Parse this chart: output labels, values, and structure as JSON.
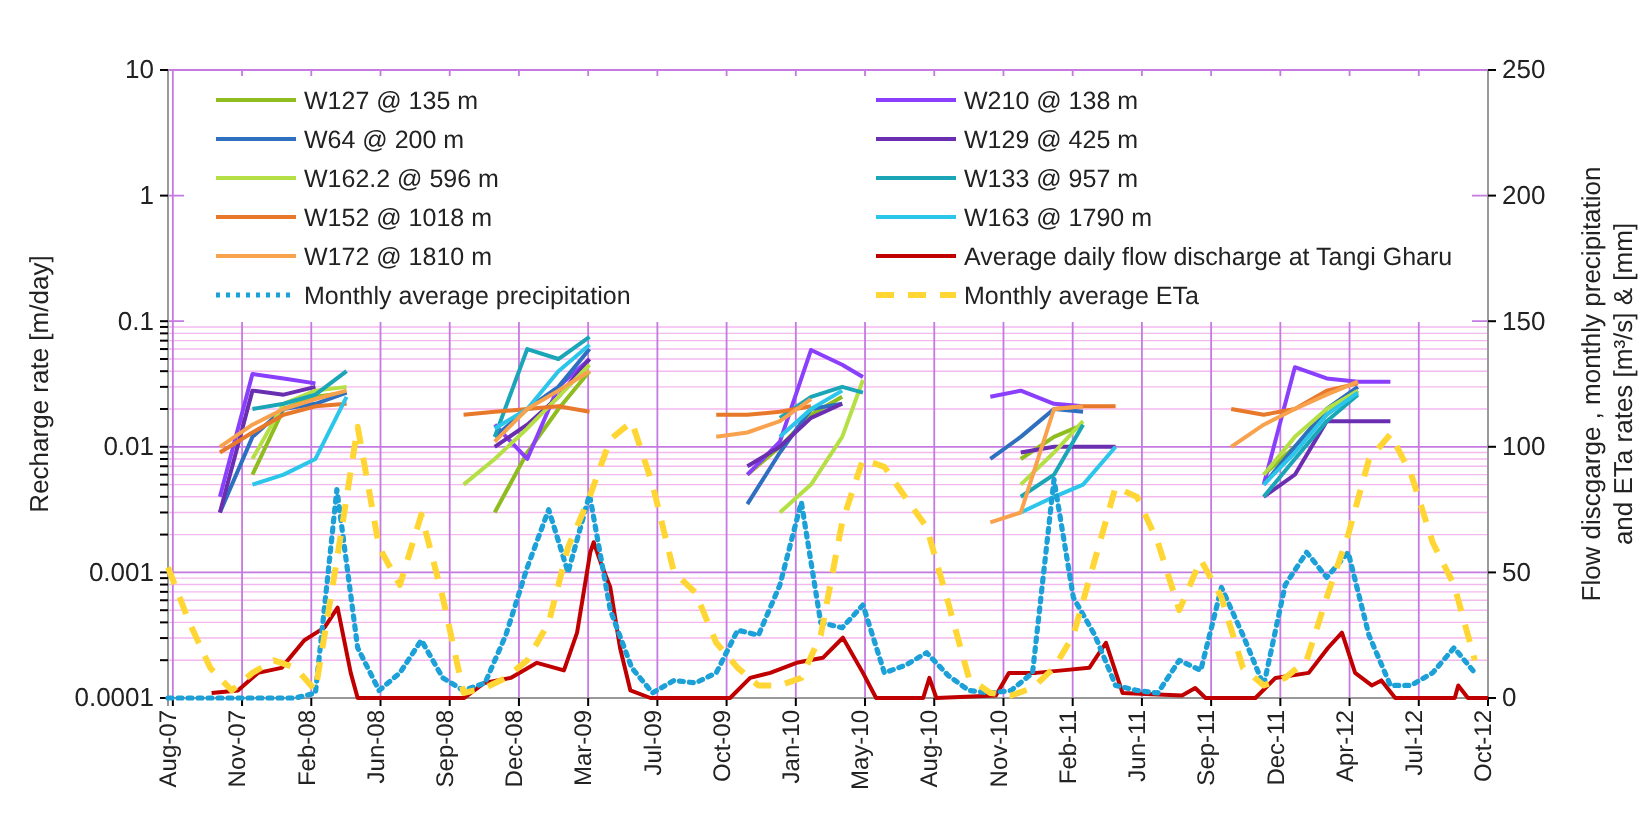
{
  "chart_data": {
    "type": "line",
    "log": "y",
    "grid": true,
    "legend": "top",
    "ylabel": "Recharge rate [m/day]",
    "y2label": "Flow discgarge , monthly precipitation and ETa rates [m³/s] & [mm]",
    "xlim": [
      "2007-08-01",
      "2012-10-20"
    ],
    "xticks": [
      {
        "value": "2007-08-08",
        "label": "Aug-07"
      },
      {
        "value": "2007-11-16",
        "label": "Nov-07"
      },
      {
        "value": "2008-02-24",
        "label": "Feb-08"
      },
      {
        "value": "2008-06-03",
        "label": "Jun-08"
      },
      {
        "value": "2008-09-11",
        "label": "Sep-08"
      },
      {
        "value": "2008-12-20",
        "label": "Dec-08"
      },
      {
        "value": "2009-03-30",
        "label": "Mar-09"
      },
      {
        "value": "2009-07-08",
        "label": "Jul-09"
      },
      {
        "value": "2009-10-16",
        "label": "Oct-09"
      },
      {
        "value": "2010-01-24",
        "label": "Jan-10"
      },
      {
        "value": "2010-05-04",
        "label": "May-10"
      },
      {
        "value": "2010-08-12",
        "label": "Aug-10"
      },
      {
        "value": "2010-11-20",
        "label": "Nov-10"
      },
      {
        "value": "2011-02-28",
        "label": "Feb-11"
      },
      {
        "value": "2011-06-08",
        "label": "Jun-11"
      },
      {
        "value": "2011-09-16",
        "label": "Sep-11"
      },
      {
        "value": "2011-12-25",
        "label": "Dec-11"
      },
      {
        "value": "2012-04-03",
        "label": "Apr-12"
      },
      {
        "value": "2012-07-12",
        "label": "Jul-12"
      },
      {
        "value": "2012-10-20",
        "label": "Oct-12"
      }
    ],
    "ylim": [
      0.0001,
      10
    ],
    "yticks": [
      0.0001,
      {
        "value": 0.0002,
        "label": null
      },
      {
        "value": 0.0003,
        "label": null
      },
      {
        "value": 0.0004,
        "label": null
      },
      {
        "value": 0.0005,
        "label": null
      },
      {
        "value": 0.0006,
        "label": null
      },
      {
        "value": 0.0007,
        "label": null
      },
      {
        "value": 0.0008,
        "label": null
      },
      {
        "value": 0.0009,
        "label": null
      },
      0.001,
      {
        "value": 0.002,
        "label": null
      },
      {
        "value": 0.003,
        "label": null
      },
      {
        "value": 0.004,
        "label": null
      },
      {
        "value": 0.005,
        "label": null
      },
      {
        "value": 0.006,
        "label": null
      },
      {
        "value": 0.007,
        "label": null
      },
      {
        "value": 0.008,
        "label": null
      },
      {
        "value": 0.009,
        "label": null
      },
      0.01,
      {
        "value": 0.02,
        "label": null
      },
      {
        "value": 0.03,
        "label": null
      },
      {
        "value": 0.04,
        "label": null
      },
      {
        "value": 0.05,
        "label": null
      },
      {
        "value": 0.06,
        "label": null
      },
      {
        "value": 0.07,
        "label": null
      },
      {
        "value": 0.08,
        "label": null
      },
      {
        "value": 0.09,
        "label": null
      },
      0.1,
      1,
      10
    ],
    "y2lim": [
      0,
      250
    ],
    "y2ticks": [
      0,
      50,
      100,
      150,
      200,
      250
    ],
    "x": [
      "2007-10-15",
      "2007-12-01",
      "2008-01-15",
      "2008-03-01",
      "2008-04-15",
      "2008-07-01",
      "2008-10-01",
      "2008-11-15",
      "2009-01-01",
      "2009-02-15",
      "2009-04-01",
      "2009-07-01",
      "2009-10-01",
      "2009-11-15",
      "2010-01-01",
      "2010-02-15",
      "2010-04-01",
      "2010-05-01",
      "2010-08-01",
      "2010-11-01",
      "2010-12-15",
      "2011-02-01",
      "2011-03-15",
      "2011-05-01",
      "2011-08-01",
      "2011-10-15",
      "2011-12-01",
      "2012-01-15",
      "2012-03-01",
      "2012-04-15",
      "2012-06-01"
    ],
    "series": [
      {
        "name": "W127 @ 135 m",
        "color": "#8fbc1e",
        "values": [
          null,
          0.006,
          0.02,
          0.025,
          0.027,
          null,
          null,
          0.003,
          0.009,
          0.02,
          0.04,
          null,
          null,
          0.006,
          0.01,
          0.018,
          0.025,
          null,
          null,
          null,
          0.008,
          0.012,
          0.015,
          null,
          null,
          null,
          0.006,
          0.01,
          0.018,
          0.028,
          null
        ]
      },
      {
        "name": "W210 @ 138 m",
        "color": "#8a3ffc",
        "values": [
          0.004,
          0.038,
          0.035,
          0.032,
          null,
          null,
          null,
          0.015,
          0.008,
          0.03,
          0.05,
          null,
          null,
          0.006,
          0.011,
          0.059,
          0.045,
          0.036,
          null,
          0.025,
          0.028,
          0.022,
          0.021,
          null,
          null,
          null,
          0.005,
          0.043,
          0.035,
          0.033,
          0.033
        ]
      },
      {
        "name": "W64 @ 200 m",
        "color": "#2e6fc0",
        "values": [
          0.003,
          0.012,
          0.02,
          0.022,
          0.027,
          null,
          null,
          0.012,
          0.02,
          0.03,
          0.06,
          null,
          null,
          0.0035,
          0.009,
          0.02,
          0.022,
          null,
          null,
          0.008,
          0.012,
          0.02,
          0.019,
          null,
          null,
          null,
          0.005,
          0.01,
          0.02,
          0.03,
          null
        ]
      },
      {
        "name": "W129 @ 425 m",
        "color": "#6a2fb0",
        "values": [
          0.003,
          0.028,
          0.026,
          0.03,
          null,
          null,
          null,
          0.01,
          0.015,
          0.025,
          0.05,
          null,
          null,
          0.007,
          0.01,
          0.017,
          0.022,
          null,
          null,
          null,
          0.009,
          0.01,
          0.01,
          0.01,
          null,
          null,
          0.004,
          0.006,
          0.016,
          0.016,
          0.016
        ]
      },
      {
        "name": "W162.2 @ 596 m",
        "color": "#b5e045",
        "values": [
          null,
          0.008,
          0.022,
          0.028,
          0.03,
          null,
          0.005,
          0.008,
          0.014,
          0.025,
          0.045,
          null,
          null,
          null,
          0.003,
          0.005,
          0.012,
          0.034,
          null,
          null,
          0.005,
          0.009,
          0.016,
          null,
          null,
          null,
          0.006,
          0.012,
          0.02,
          0.028,
          null
        ]
      },
      {
        "name": "W133 @ 957 m",
        "color": "#1aa6b7",
        "values": [
          null,
          0.02,
          0.022,
          0.026,
          0.04,
          null,
          null,
          0.012,
          0.06,
          0.05,
          0.075,
          null,
          null,
          null,
          0.017,
          0.025,
          0.03,
          0.027,
          null,
          null,
          0.004,
          0.006,
          0.015,
          null,
          null,
          null,
          0.004,
          0.008,
          0.016,
          0.026,
          null
        ]
      },
      {
        "name": "W152 @ 1018 m",
        "color": "#e8782a",
        "values": [
          0.009,
          0.013,
          0.018,
          0.021,
          0.022,
          null,
          0.018,
          0.019,
          0.02,
          0.021,
          0.019,
          null,
          0.018,
          0.018,
          0.019,
          0.021,
          null,
          null,
          null,
          null,
          null,
          0.02,
          0.021,
          0.021,
          null,
          0.02,
          0.018,
          0.02,
          0.028,
          0.032,
          null
        ]
      },
      {
        "name": "W163 @ 1790 m",
        "color": "#2cc6ea",
        "values": [
          null,
          0.005,
          0.006,
          0.008,
          0.025,
          null,
          null,
          0.014,
          0.02,
          0.04,
          0.065,
          null,
          null,
          null,
          0.012,
          0.02,
          0.028,
          null,
          null,
          null,
          0.003,
          0.004,
          0.005,
          0.01,
          null,
          null,
          0.005,
          0.009,
          0.018,
          0.027,
          null
        ]
      },
      {
        "name": "W172 @ 1810 m",
        "color": "#f9a24e",
        "values": [
          0.01,
          0.015,
          0.02,
          0.024,
          0.028,
          null,
          null,
          0.011,
          0.02,
          0.028,
          0.04,
          null,
          0.012,
          0.013,
          0.016,
          0.024,
          null,
          null,
          null,
          0.0025,
          0.003,
          0.02,
          0.021,
          null,
          null,
          0.01,
          0.015,
          0.02,
          0.026,
          0.033,
          null
        ]
      },
      {
        "name": "Average daily flow discharge at Tangi Gharu",
        "color": "#c00000",
        "axis": "y2",
        "line_style": "solid",
        "x": [
          "2007-10-03",
          "2007-11-10",
          "2007-12-09",
          "2008-01-12",
          "2008-02-14",
          "2008-03-14",
          "2008-04-02",
          "2008-04-21",
          "2008-05-01",
          "2008-07-01",
          "2008-10-02",
          "2008-10-31",
          "2008-12-08",
          "2009-01-15",
          "2009-02-23",
          "2009-03-14",
          "2009-04-02",
          "2009-04-07",
          "2009-04-17",
          "2009-05-01",
          "2009-05-15",
          "2009-05-30",
          "2009-06-28",
          "2009-10-21",
          "2009-11-19",
          "2009-12-18",
          "2010-01-25",
          "2010-03-04",
          "2010-04-02",
          "2010-05-01",
          "2010-05-20",
          "2010-07-27",
          "2010-08-05",
          "2010-08-15",
          "2010-11-09",
          "2010-11-28",
          "2011-01-06",
          "2011-02-13",
          "2011-03-24",
          "2011-04-17",
          "2011-05-11",
          "2011-08-05",
          "2011-08-24",
          "2011-09-08",
          "2011-11-19",
          "2011-12-18",
          "2012-02-04",
          "2012-03-03",
          "2012-03-23",
          "2012-04-11",
          "2012-05-05",
          "2012-05-19",
          "2012-06-08",
          "2012-09-02",
          "2012-09-07",
          "2012-09-21",
          "2012-10-20"
        ],
        "values": [
          2,
          3,
          10,
          12,
          23,
          28,
          36,
          10,
          0,
          0,
          0,
          6,
          8,
          14,
          11,
          26,
          58,
          62,
          54,
          44,
          20,
          3,
          0,
          0,
          8,
          10,
          14,
          16,
          24,
          10,
          0,
          0,
          8,
          0,
          1,
          10,
          10,
          11,
          12,
          22,
          2,
          1,
          4,
          0,
          0,
          8,
          10,
          20,
          26,
          10,
          5,
          7,
          0,
          0,
          5,
          0,
          0
        ]
      },
      {
        "name": "Monthly average precipitation",
        "color": "#1ca0d8",
        "axis": "y2",
        "line_style": "dotted",
        "x": [
          "2007-08",
          "2007-09",
          "2007-10",
          "2007-11",
          "2007-12",
          "2008-01",
          "2008-02",
          "2008-03",
          "2008-04",
          "2008-05",
          "2008-06",
          "2008-07",
          "2008-08",
          "2008-09",
          "2008-10",
          "2008-11",
          "2008-12",
          "2009-01",
          "2009-02",
          "2009-03",
          "2009-04",
          "2009-05",
          "2009-06",
          "2009-07",
          "2009-08",
          "2009-09",
          "2009-10",
          "2009-11",
          "2009-12",
          "2010-01",
          "2010-02",
          "2010-03",
          "2010-04",
          "2010-05",
          "2010-06",
          "2010-07",
          "2010-08",
          "2010-09",
          "2010-10",
          "2010-11",
          "2010-12",
          "2011-01",
          "2011-02",
          "2011-03",
          "2011-04",
          "2011-05",
          "2011-06",
          "2011-07",
          "2011-08",
          "2011-09",
          "2011-10",
          "2011-11",
          "2011-12",
          "2012-01",
          "2012-02",
          "2012-03",
          "2012-04",
          "2012-05",
          "2012-06",
          "2012-07",
          "2012-08",
          "2012-09",
          "2012-10"
        ],
        "values": [
          0,
          0,
          0,
          0,
          0,
          0,
          0,
          2,
          83,
          20,
          3,
          10,
          23,
          8,
          3,
          6,
          25,
          52,
          75,
          50,
          81,
          35,
          12,
          2,
          7,
          6,
          10,
          27,
          25,
          45,
          78,
          30,
          28,
          37,
          10,
          13,
          18,
          9,
          3,
          2,
          3,
          10,
          87,
          40,
          25,
          5,
          3,
          2,
          15,
          11,
          44,
          25,
          5,
          45,
          58,
          48,
          58,
          25,
          5,
          5,
          10,
          20,
          10
        ]
      },
      {
        "name": "Monthly average ETa",
        "color": "#ffd633",
        "axis": "y2",
        "line_style": "dashed",
        "x": [
          "2007-08",
          "2007-09",
          "2007-10",
          "2007-11",
          "2007-12",
          "2008-01",
          "2008-02",
          "2008-03",
          "2008-04",
          "2008-05",
          "2008-06",
          "2008-07",
          "2008-08",
          "2008-09",
          "2008-10",
          "2008-11",
          "2008-12",
          "2009-01",
          "2009-02",
          "2009-03",
          "2009-04",
          "2009-05",
          "2009-06",
          "2009-07",
          "2009-08",
          "2009-09",
          "2009-10",
          "2009-11",
          "2009-12",
          "2010-01",
          "2010-02",
          "2010-03",
          "2010-04",
          "2010-05",
          "2010-06",
          "2010-07",
          "2010-08",
          "2010-09",
          "2010-10",
          "2010-11",
          "2010-12",
          "2011-01",
          "2011-02",
          "2011-03",
          "2011-04",
          "2011-05",
          "2011-06",
          "2011-07",
          "2011-08",
          "2011-09",
          "2011-10",
          "2011-11",
          "2011-12",
          "2012-01",
          "2012-02",
          "2012-03",
          "2012-04",
          "2012-05",
          "2012-06",
          "2012-07",
          "2012-08",
          "2012-09",
          "2012-10"
        ],
        "values": [
          52,
          30,
          12,
          3,
          10,
          15,
          12,
          3,
          55,
          108,
          60,
          45,
          73,
          40,
          2,
          4,
          8,
          15,
          30,
          60,
          80,
          103,
          110,
          85,
          50,
          42,
          22,
          12,
          5,
          5,
          8,
          25,
          70,
          95,
          92,
          80,
          68,
          38,
          8,
          2,
          1,
          4,
          12,
          25,
          55,
          84,
          80,
          62,
          35,
          55,
          40,
          12,
          5,
          8,
          15,
          40,
          65,
          95,
          105,
          89,
          62,
          45,
          15
        ]
      }
    ]
  }
}
